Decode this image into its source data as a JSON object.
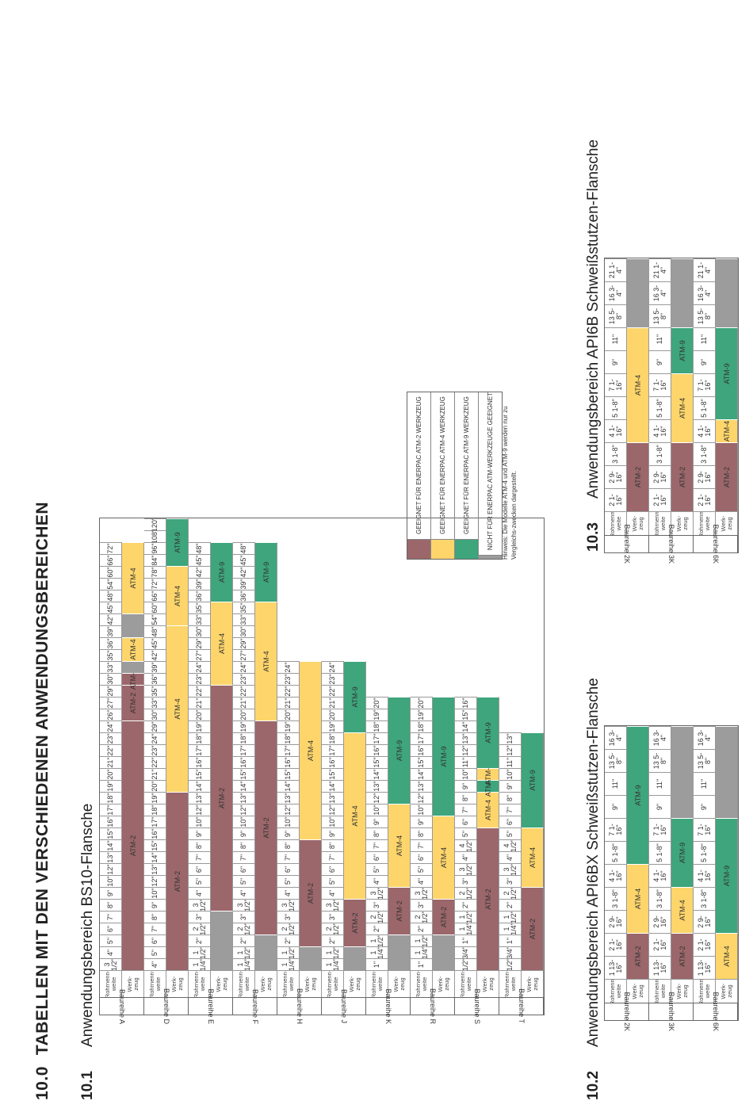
{
  "title": {
    "number": "10.0",
    "text": "TABELLEN MIT DEN VERSCHIEDENEN ANWENDUNGSBEREICHEN"
  },
  "colors": {
    "ATM-2": "#9b676b",
    "ATM-4": "#fdd56b",
    "ATM-9": "#3ea57c",
    "none": "#9c9c9c"
  },
  "labels": {
    "row_size": "Rohrnenn-\nweite",
    "row_tool": "Werk-\nzeug",
    "series_prefix": "Baureihe"
  },
  "legend": {
    "items": [
      {
        "color": "ATM-2",
        "text": "GEEIGNET FÜR ENERPAC ATM-2 WERKZEUG"
      },
      {
        "color": "ATM-4",
        "text": "GEEIGNET FÜR ENERPAC ATM-4 WERKZEUG"
      },
      {
        "color": "ATM-9",
        "text": "GEEIGNET FÜR ENERPAC ATM-9 WERKZEUG"
      },
      {
        "color": "none",
        "text": "NICHT FÜR ENERPAC ATM-WERKZEUGE GEEIGNET"
      }
    ],
    "note": "Hinweis: Die Modelle ATM-4 und ATM-9 werden nur zu Vergleichs-zwecken dargestellt."
  },
  "bs10": {
    "number": "10.1",
    "title": "Anwendungsbereich BS10-Flansche",
    "series": [
      {
        "name": "A",
        "sizes": [
          "3 1/2\"",
          "4\"",
          "5\"",
          "6\"",
          "7\"",
          "8\"",
          "9\"",
          "10\"",
          "12\"",
          "13\"",
          "14\"",
          "15\"",
          "16\"",
          "17\"",
          "18\"",
          "19\"",
          "20\"",
          "21\"",
          "22\"",
          "23\"",
          "24\"",
          "26\"",
          "27\"",
          "29\"",
          "30\"",
          "33\"",
          "35\"",
          "36\"",
          "39\"",
          "42\"",
          "45\"",
          "48\"",
          "54\"",
          "60\"",
          "66\"",
          "72\""
        ],
        "tools": [
          {
            "tool": "ATM-2",
            "span": 21
          },
          {
            "tool": "ATM-2",
            "span": 3
          },
          {
            "tool": "ATM-2",
            "span": 1
          },
          {
            "tool": "none",
            "span": 1
          },
          {
            "tool": "ATM-4",
            "span": 2
          },
          {
            "tool": "none",
            "span": 2
          },
          {
            "tool": "ATM-4",
            "span": 6
          }
        ]
      },
      {
        "name": "D",
        "sizes": [
          "4\"",
          "5\"",
          "6\"",
          "7\"",
          "8\"",
          "9\"",
          "10\"",
          "12\"",
          "13\"",
          "14\"",
          "15\"",
          "16\"",
          "17\"",
          "18\"",
          "19\"",
          "20\"",
          "21\"",
          "22\"",
          "23\"",
          "24\"",
          "29\"",
          "30\"",
          "33\"",
          "35\"",
          "36\"",
          "39\"",
          "42\"",
          "45\"",
          "48\"",
          "54\"",
          "60\"",
          "66\"",
          "72\"",
          "78\"",
          "84\"",
          "96\"",
          "108\"",
          "120\""
        ],
        "tools": [
          {
            "tool": "ATM-2",
            "span": 15
          },
          {
            "tool": "ATM-4",
            "span": 14
          },
          {
            "tool": "ATM-4",
            "span": 5
          },
          {
            "tool": "ATM-9",
            "span": 4
          }
        ]
      },
      {
        "name": "E",
        "sizes": [
          "1 1/4\"",
          "1 1/2\"",
          "2\"",
          "2 1/2\"",
          "3\"",
          "3 1/2\"",
          "4\"",
          "5\"",
          "6\"",
          "7\"",
          "8\"",
          "9\"",
          "10\"",
          "12\"",
          "13\"",
          "14\"",
          "15\"",
          "16\"",
          "17\"",
          "18\"",
          "19\"",
          "20\"",
          "21\"",
          "22\"",
          "23\"",
          "24\"",
          "27\"",
          "29\"",
          "30\"",
          "33\"",
          "35\"",
          "36\"",
          "39\"",
          "42\"",
          "45\"",
          "48\""
        ],
        "tools": [
          {
            "tool": "none",
            "span": 5
          },
          {
            "tool": "ATM-2",
            "span": 19
          },
          {
            "tool": "ATM-4",
            "span": 7
          },
          {
            "tool": "ATM-9",
            "span": 5
          }
        ]
      },
      {
        "name": "F",
        "sizes": [
          "1 1/4\"",
          "1 1/2\"",
          "2\"",
          "2 1/2\"",
          "3\"",
          "3 1/2\"",
          "4\"",
          "5\"",
          "6\"",
          "7\"",
          "8\"",
          "9\"",
          "10\"",
          "12\"",
          "13\"",
          "14\"",
          "15\"",
          "16\"",
          "17\"",
          "18\"",
          "19\"",
          "20\"",
          "21\"",
          "22\"",
          "23\"",
          "24\"",
          "27\"",
          "29\"",
          "30\"",
          "33\"",
          "35\"",
          "36\"",
          "39\"",
          "42\"",
          "45\"",
          "48\""
        ],
        "tools": [
          {
            "tool": "none",
            "span": 3
          },
          {
            "tool": "ATM-2",
            "span": 18
          },
          {
            "tool": "ATM-4",
            "span": 10
          },
          {
            "tool": "ATM-9",
            "span": 5
          }
        ]
      },
      {
        "name": "H",
        "sizes": [
          "1 1/4\"",
          "1 1/2\"",
          "2\"",
          "2 1/2\"",
          "3\"",
          "3 1/2\"",
          "4\"",
          "5\"",
          "6\"",
          "7\"",
          "8\"",
          "9\"",
          "10\"",
          "12\"",
          "13\"",
          "14\"",
          "15\"",
          "16\"",
          "17\"",
          "18\"",
          "19\"",
          "20\"",
          "21\"",
          "22\"",
          "23\"",
          "24\""
        ],
        "tools": [
          {
            "tool": "none",
            "span": 2
          },
          {
            "tool": "ATM-2",
            "span": 9
          },
          {
            "tool": "ATM-4",
            "span": 15
          }
        ]
      },
      {
        "name": "J",
        "sizes": [
          "1 1/4\"",
          "1 1/2\"",
          "2\"",
          "2 1/2\"",
          "3\"",
          "3 1/2\"",
          "4\"",
          "5\"",
          "6\"",
          "7\"",
          "8\"",
          "9\"",
          "10\"",
          "12\"",
          "13\"",
          "14\"",
          "15\"",
          "16\"",
          "17\"",
          "18\"",
          "19\"",
          "20\"",
          "21\"",
          "22\"",
          "23\"",
          "24\""
        ],
        "tools": [
          {
            "tool": "none",
            "span": 2
          },
          {
            "tool": "ATM-2",
            "span": 4
          },
          {
            "tool": "ATM-4",
            "span": 14
          },
          {
            "tool": "ATM-9",
            "span": 6
          }
        ]
      },
      {
        "name": "K",
        "sizes": [
          "1\"",
          "1 1/4\"",
          "1 1/2\"",
          "2\"",
          "2 1/2\"",
          "3\"",
          "3 1/2\"",
          "4\"",
          "5\"",
          "6\"",
          "7\"",
          "8\"",
          "9\"",
          "10\"",
          "12\"",
          "13\"",
          "14\"",
          "15\"",
          "16\"",
          "17\"",
          "18\"",
          "19\"",
          "20\""
        ],
        "tools": [
          {
            "tool": "none",
            "span": 3
          },
          {
            "tool": "ATM-2",
            "span": 4
          },
          {
            "tool": "ATM-4",
            "span": 7
          },
          {
            "tool": "ATM-9",
            "span": 9
          }
        ]
      },
      {
        "name": "R",
        "sizes": [
          "1\"",
          "1 1/4\"",
          "1 1/2\"",
          "2\"",
          "2 1/2\"",
          "3\"",
          "3 1/2\"",
          "4\"",
          "5\"",
          "6\"",
          "7\"",
          "8\"",
          "9\"",
          "10\"",
          "12\"",
          "13\"",
          "14\"",
          "15\"",
          "16\"",
          "17\"",
          "18\"",
          "19\"",
          "20\""
        ],
        "tools": [
          {
            "tool": "none",
            "span": 3
          },
          {
            "tool": "ATM-2",
            "span": 3
          },
          {
            "tool": "ATM-4",
            "span": 7
          },
          {
            "tool": "ATM-9",
            "span": 10
          }
        ]
      },
      {
        "name": "S",
        "sizes": [
          "1/2\"",
          "3/4\"",
          "1\"",
          "1 1/4\"",
          "1 1/2\"",
          "2\"",
          "2 1/2\"",
          "3\"",
          "3 1/2\"",
          "4\"",
          "4 1/2\"",
          "5\"",
          "6\"",
          "7\"",
          "8\"",
          "9\"",
          "10\"",
          "11\"",
          "12\"",
          "13\"",
          "14\"",
          "15\"",
          "16\""
        ],
        "tools": [
          {
            "tool": "ATM-2",
            "span": 12
          },
          {
            "tool": "ATM-4",
            "span": 3
          },
          {
            "tool": "ATM-9",
            "span": 1
          },
          {
            "tool": "ATM-4",
            "span": 1
          },
          {
            "tool": "ATM-9",
            "span": 6
          }
        ]
      },
      {
        "name": "T",
        "sizes": [
          "1/2\"",
          "3/4\"",
          "1\"",
          "1 1/4\"",
          "1 1/2\"",
          "2\"",
          "2 1/2\"",
          "3\"",
          "3 1/2\"",
          "4\"",
          "4 1/2\"",
          "5\"",
          "6\"",
          "7\"",
          "8\"",
          "9\"",
          "10\"",
          "11\"",
          "12\"",
          "13\""
        ],
        "tools": [
          {
            "tool": "ATM-2",
            "span": 7
          },
          {
            "tool": "ATM-4",
            "span": 5
          },
          {
            "tool": "ATM-9",
            "span": 8
          }
        ]
      }
    ]
  },
  "api6bx": {
    "number": "10.2",
    "title": "Anwendungsbereich API6BX Schweißstutzen-Flansche",
    "series": [
      {
        "name": "2K",
        "sizes": [
          "1 13-16\"",
          "2 1-16\"",
          "2 9-16\"",
          "3 1-8\"",
          "4 1-16\"",
          "5 1-8\"",
          "7 1-16\"",
          "9\"",
          "11\"",
          "13 5-8\"",
          "16 3-4\""
        ],
        "tools": [
          {
            "tool": "ATM-2",
            "span": 2
          },
          {
            "tool": "ATM-4",
            "span": 3
          },
          {
            "tool": "ATM-9",
            "span": 6
          }
        ]
      },
      {
        "name": "3K",
        "sizes": [
          "1 13-16\"",
          "2 1-16\"",
          "2 9-16\"",
          "3 1-8\"",
          "4 1-16\"",
          "5 1-8\"",
          "7 1-16\"",
          "9\"",
          "11\"",
          "13 5-8\"",
          "16 3-4\""
        ],
        "tools": [
          {
            "tool": "ATM-2",
            "span": 2
          },
          {
            "tool": "ATM-4",
            "span": 2
          },
          {
            "tool": "ATM-9",
            "span": 3
          },
          {
            "tool": "none",
            "span": 4
          }
        ]
      },
      {
        "name": "6K",
        "sizes": [
          "1 13-16\"",
          "2 1-16\"",
          "2 9-16\"",
          "3 1-8\"",
          "4 1-16\"",
          "5 1-8\"",
          "7 1-16\"",
          "9\"",
          "11\"",
          "13 5-8\"",
          "16 3-4\""
        ],
        "tools": [
          {
            "tool": "ATM-4",
            "span": 2
          },
          {
            "tool": "ATM-9",
            "span": 5
          },
          {
            "tool": "none",
            "span": 4
          }
        ]
      }
    ]
  },
  "api6b": {
    "number": "10.3",
    "title": "Anwendungsbereich API6B Schweißstutzen-Flansche",
    "series": [
      {
        "name": "2K",
        "sizes": [
          "2 1-16\"",
          "2 9-16\"",
          "3 1-8\"",
          "4 1-16\"",
          "5 1-8\"",
          "7 1-16\"",
          "9\"",
          "11\"",
          "13 5-8\"",
          "16 3-4\"",
          "21 1-4\""
        ],
        "tools": [
          {
            "tool": "ATM-2",
            "span": 3
          },
          {
            "tool": "ATM-4",
            "span": 5
          },
          {
            "tool": "none",
            "span": 3
          }
        ]
      },
      {
        "name": "3K",
        "sizes": [
          "2 1-16\"",
          "2 9-16\"",
          "3 1-8\"",
          "4 1-16\"",
          "5 1-8\"",
          "7 1-16\"",
          "9\"",
          "11\"",
          "13 5-8\"",
          "16 3-4\"",
          "21 1-4\""
        ],
        "tools": [
          {
            "tool": "ATM-2",
            "span": 3
          },
          {
            "tool": "ATM-4",
            "span": 3
          },
          {
            "tool": "ATM-9",
            "span": 2
          },
          {
            "tool": "none",
            "span": 3
          }
        ]
      },
      {
        "name": "6K",
        "sizes": [
          "2 1-16\"",
          "2 9-16\"",
          "3 1-8\"",
          "4 1-16\"",
          "5 1-8\"",
          "7 1-16\"",
          "9\"",
          "11\"",
          "13 5-8\"",
          "16 3-4\"",
          "21 1-4\""
        ],
        "tools": [
          {
            "tool": "ATM-2",
            "span": 3
          },
          {
            "tool": "ATM-4",
            "span": 1
          },
          {
            "tool": "ATM-9",
            "span": 4
          },
          {
            "tool": "none",
            "span": 3
          }
        ]
      }
    ]
  }
}
